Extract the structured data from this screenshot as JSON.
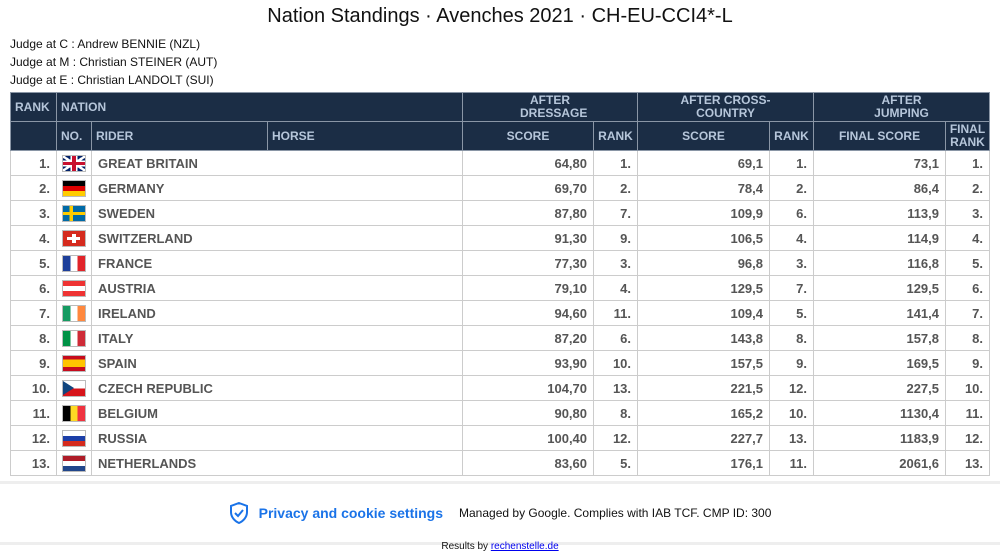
{
  "title": "Nation Standings · Avenches 2021 · CH-EU-CCI4*-L",
  "judges": [
    "Judge at C : Andrew BENNIE (NZL)",
    "Judge at M : Christian STEINER (AUT)",
    "Judge at E : Christian LANDOLT (SUI)"
  ],
  "header": {
    "rank": "RANK",
    "nation": "NATION",
    "after_dressage": "AFTER DRESSAGE",
    "after_xc": "AFTER CROSS-COUNTRY",
    "after_jumping": "AFTER JUMPING",
    "no": "NO.",
    "rider": "RIDER",
    "horse": "HORSE",
    "score": "SCORE",
    "rank2": "RANK",
    "final_score": "FINAL SCORE",
    "final_rank": "FINAL RANK"
  },
  "rows": [
    {
      "rank": "1.",
      "flag": "GBR",
      "nation": "GREAT BRITAIN",
      "d_score": "64,80",
      "d_rank": "1.",
      "x_score": "69,1",
      "x_rank": "1.",
      "final": "73,1",
      "final_rank": "1."
    },
    {
      "rank": "2.",
      "flag": "GER",
      "nation": "GERMANY",
      "d_score": "69,70",
      "d_rank": "2.",
      "x_score": "78,4",
      "x_rank": "2.",
      "final": "86,4",
      "final_rank": "2."
    },
    {
      "rank": "3.",
      "flag": "SWE",
      "nation": "SWEDEN",
      "d_score": "87,80",
      "d_rank": "7.",
      "x_score": "109,9",
      "x_rank": "6.",
      "final": "113,9",
      "final_rank": "3."
    },
    {
      "rank": "4.",
      "flag": "SUI",
      "nation": "SWITZERLAND",
      "d_score": "91,30",
      "d_rank": "9.",
      "x_score": "106,5",
      "x_rank": "4.",
      "final": "114,9",
      "final_rank": "4."
    },
    {
      "rank": "5.",
      "flag": "FRA",
      "nation": "FRANCE",
      "d_score": "77,30",
      "d_rank": "3.",
      "x_score": "96,8",
      "x_rank": "3.",
      "final": "116,8",
      "final_rank": "5."
    },
    {
      "rank": "6.",
      "flag": "AUT",
      "nation": "AUSTRIA",
      "d_score": "79,10",
      "d_rank": "4.",
      "x_score": "129,5",
      "x_rank": "7.",
      "final": "129,5",
      "final_rank": "6."
    },
    {
      "rank": "7.",
      "flag": "IRL",
      "nation": "IRELAND",
      "d_score": "94,60",
      "d_rank": "11.",
      "x_score": "109,4",
      "x_rank": "5.",
      "final": "141,4",
      "final_rank": "7."
    },
    {
      "rank": "8.",
      "flag": "ITA",
      "nation": "ITALY",
      "d_score": "87,20",
      "d_rank": "6.",
      "x_score": "143,8",
      "x_rank": "8.",
      "final": "157,8",
      "final_rank": "8."
    },
    {
      "rank": "9.",
      "flag": "ESP",
      "nation": "SPAIN",
      "d_score": "93,90",
      "d_rank": "10.",
      "x_score": "157,5",
      "x_rank": "9.",
      "final": "169,5",
      "final_rank": "9."
    },
    {
      "rank": "10.",
      "flag": "CZE",
      "nation": "CZECH REPUBLIC",
      "d_score": "104,70",
      "d_rank": "13.",
      "x_score": "221,5",
      "x_rank": "12.",
      "final": "227,5",
      "final_rank": "10."
    },
    {
      "rank": "11.",
      "flag": "BEL",
      "nation": "BELGIUM",
      "d_score": "90,80",
      "d_rank": "8.",
      "x_score": "165,2",
      "x_rank": "10.",
      "final": "1130,4",
      "final_rank": "11."
    },
    {
      "rank": "12.",
      "flag": "RUS",
      "nation": "RUSSIA",
      "d_score": "100,40",
      "d_rank": "12.",
      "x_score": "227,7",
      "x_rank": "13.",
      "final": "1183,9",
      "final_rank": "12."
    },
    {
      "rank": "13.",
      "flag": "NED",
      "nation": "NETHERLANDS",
      "d_score": "83,60",
      "d_rank": "5.",
      "x_score": "176,1",
      "x_rank": "11.",
      "final": "2061,6",
      "final_rank": "13."
    }
  ],
  "footer": {
    "privacy": "Privacy and cookie settings",
    "managed": "Managed by Google. Complies with IAB TCF. CMP ID: 300",
    "results_by": "Results by",
    "results_link": "rechenstelle.de"
  },
  "colors": {
    "header_bg": "#1b2d45",
    "header_text": "#b6c6da",
    "privacy_link": "#1a73e8"
  }
}
